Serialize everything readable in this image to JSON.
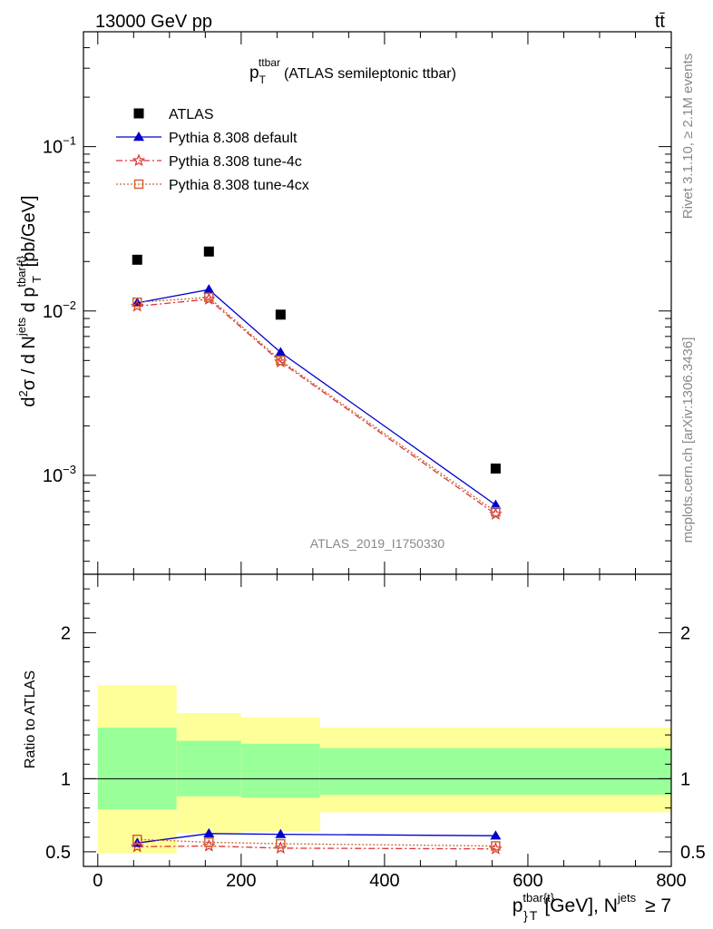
{
  "header": {
    "left": "13000 GeV pp",
    "right": "tt̄"
  },
  "side_labels": {
    "rivet": "Rivet 3.1.10, ≥ 2.1M events",
    "mcplots": "mcplots.cern.ch [arXiv:1306.3436]"
  },
  "watermark": "ATLAS_2019_I1750330",
  "chart_data": [
    {
      "type": "line",
      "title_main": "p",
      "title_sub": "T",
      "title_sup": "ttbar",
      "title_tail": "(ATLAS semileptonic ttbar)",
      "ylabel": "d²σ / d N^jets d p^tbar{t}_T [pb/GeV]",
      "yscale": "log",
      "ylim": [
        0.00025,
        0.5
      ],
      "xlim": [
        -20,
        800
      ],
      "y_ticks": [
        {
          "value": 0.1,
          "base": "10",
          "exp": "−1"
        },
        {
          "value": 0.01,
          "base": "10",
          "exp": "−2"
        },
        {
          "value": 0.001,
          "base": "10",
          "exp": "−3"
        }
      ],
      "legend_placement": "top-left",
      "series": [
        {
          "name": "ATLAS",
          "color": "#000000",
          "marker": "filled-square",
          "x": [
            55,
            155,
            255,
            555
          ],
          "y": [
            0.0205,
            0.023,
            0.0095,
            0.0011
          ]
        },
        {
          "name": "Pythia 8.308 default",
          "color": "#0000cc",
          "marker": "filled-triangle",
          "line": "solid",
          "x": [
            55,
            155,
            255,
            555
          ],
          "y": [
            0.0112,
            0.0135,
            0.0056,
            0.00066
          ]
        },
        {
          "name": "Pythia 8.308 tune-4c",
          "color": "#dd3333",
          "marker": "open-star",
          "line": "dashdot",
          "x": [
            55,
            155,
            255,
            555
          ],
          "y": [
            0.0107,
            0.0118,
            0.0049,
            0.00058
          ]
        },
        {
          "name": "Pythia 8.308 tune-4cx",
          "color": "#cc6633",
          "marker": "open-square",
          "line": "dotted",
          "x": [
            55,
            155,
            255,
            555
          ],
          "y": [
            0.0113,
            0.0121,
            0.005,
            0.0006
          ]
        }
      ]
    },
    {
      "type": "line",
      "ylabel": "Ratio to ATLAS",
      "xlabel": "p^tbar{t}_T [GeV], N^jets ≥ 7",
      "ylim": [
        0.4,
        2.4
      ],
      "xlim": [
        -20,
        800
      ],
      "y_ticks": [
        0.5,
        1,
        2
      ],
      "x_ticks": [
        0,
        200,
        400,
        600,
        800
      ],
      "uncertainty_bands": [
        {
          "x_range": [
            0,
            110
          ],
          "inner": [
            0.79,
            1.35
          ],
          "outer": [
            0.49,
            1.64
          ]
        },
        {
          "x_range": [
            110,
            200
          ],
          "inner": [
            0.88,
            1.26
          ],
          "outer": [
            0.63,
            1.45
          ]
        },
        {
          "x_range": [
            200,
            310
          ],
          "inner": [
            0.87,
            1.24
          ],
          "outer": [
            0.64,
            1.42
          ]
        },
        {
          "x_range": [
            310,
            800
          ],
          "inner": [
            0.89,
            1.21
          ],
          "outer": [
            0.77,
            1.35
          ]
        }
      ],
      "series": [
        {
          "name": "Pythia 8.308 default",
          "color": "#0000cc",
          "marker": "filled-triangle",
          "line": "solid",
          "x": [
            55,
            155,
            255,
            555
          ],
          "y": [
            0.56,
            0.625,
            0.62,
            0.61
          ]
        },
        {
          "name": "Pythia 8.308 tune-4c",
          "color": "#dd3333",
          "marker": "open-star",
          "line": "dashdot",
          "x": [
            55,
            155,
            255,
            555
          ],
          "y": [
            0.535,
            0.54,
            0.525,
            0.52
          ]
        },
        {
          "name": "Pythia 8.308 tune-4cx",
          "color": "#cc6633",
          "marker": "open-square",
          "line": "dotted",
          "x": [
            55,
            155,
            255,
            555
          ],
          "y": [
            0.585,
            0.565,
            0.555,
            0.54
          ]
        }
      ]
    }
  ]
}
